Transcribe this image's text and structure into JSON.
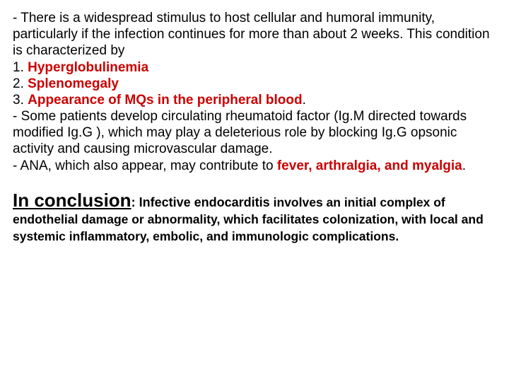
{
  "para1": {
    "line1": "- There is a widespread stimulus to host cellular and humoral immunity, particularly if the infection continues for more than about 2 weeks. This condition is characterized by",
    "item1_num": "1. ",
    "item1_text": "Hyperglobulinemia",
    "item2_num": "2. ",
    "item2_text": "Splenomegaly",
    "item3_num": "3. ",
    "item3_text": "Appearance of MQs in the peripheral blood",
    "item3_dot": ".",
    "line5": "- Some patients develop circulating rheumatoid factor (Ig.M directed towards modified Ig.G ), which may play a deleterious role by blocking Ig.G opsonic activity and causing microvascular damage.",
    "line6a": "- ANA, which also appear, may contribute to ",
    "line6b": "fever, arthralgia, and myalgia",
    "line6c": "."
  },
  "para2": {
    "heading": "In conclusion",
    "colon": ": ",
    "text1a": "Infective endocarditis ",
    "text1b": "involves an initial complex of  endothelial damage or abnormality, which facilitates colonization, with local and systemic inflammatory, embolic, and immunologic complications."
  },
  "colors": {
    "red": "#cc0000",
    "black": "#000000",
    "bg": "#ffffff"
  }
}
